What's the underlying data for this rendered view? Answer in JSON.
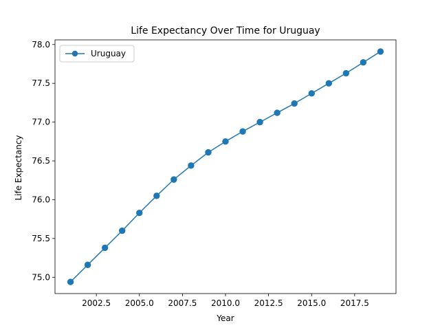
{
  "chart_data": {
    "type": "line",
    "title": "Life Expectancy Over Time for Uruguay",
    "xlabel": "Year",
    "ylabel": "Life Expectancy",
    "xlim": [
      2000.1,
      2019.9
    ],
    "ylim": [
      74.79,
      78.06
    ],
    "x_ticks": [
      2002.5,
      2005.0,
      2007.5,
      2010.0,
      2012.5,
      2015.0,
      2017.5
    ],
    "x_tick_labels": [
      "2002.5",
      "2005.0",
      "2007.5",
      "2010.0",
      "2012.5",
      "2015.0",
      "2017.5"
    ],
    "y_ticks": [
      75.0,
      75.5,
      76.0,
      76.5,
      77.0,
      77.5,
      78.0
    ],
    "y_tick_labels": [
      "75.0",
      "75.5",
      "76.0",
      "76.5",
      "77.0",
      "77.5",
      "78.0"
    ],
    "grid": false,
    "legend_position": "upper-left",
    "series": [
      {
        "name": "Uruguay",
        "color": "#1f77b4",
        "marker": "circle",
        "x": [
          2001,
          2002,
          2003,
          2004,
          2005,
          2006,
          2007,
          2008,
          2009,
          2010,
          2011,
          2012,
          2013,
          2014,
          2015,
          2016,
          2017,
          2018,
          2019
        ],
        "y": [
          74.94,
          75.16,
          75.38,
          75.6,
          75.83,
          76.05,
          76.26,
          76.44,
          76.61,
          76.75,
          76.88,
          77.0,
          77.12,
          77.24,
          77.37,
          77.5,
          77.63,
          77.77,
          77.91
        ]
      }
    ]
  }
}
